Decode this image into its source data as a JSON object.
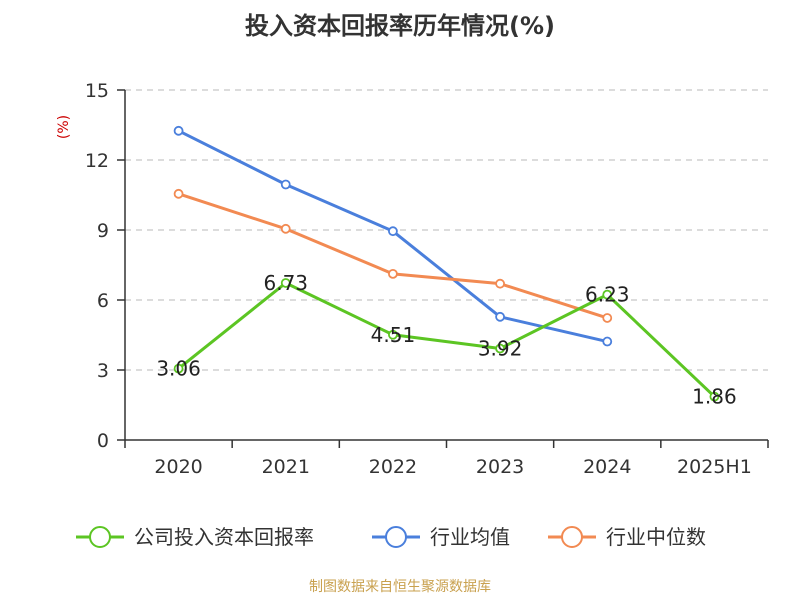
{
  "title": "投入资本回报率历年情况(%)",
  "footer": "制图数据来自恒生聚源数据库",
  "chart_data": {
    "type": "line",
    "categories": [
      "2020",
      "2021",
      "2022",
      "2023",
      "2024",
      "2025H1"
    ],
    "ylabel": "(%)",
    "ylim": [
      0,
      15
    ],
    "yticks": [
      0,
      3,
      6,
      9,
      12,
      15
    ],
    "grid": true,
    "legend_position": "bottom",
    "series": [
      {
        "name": "公司投入资本回报率",
        "color": "#5cc523",
        "values": [
          3.06,
          6.73,
          4.51,
          3.92,
          6.23,
          1.86
        ],
        "labels": [
          "3.06",
          "6.73",
          "4.51",
          "3.92",
          "6.23",
          "1.86"
        ]
      },
      {
        "name": "行业均值",
        "color": "#4a7fdc",
        "values": [
          13.25,
          10.95,
          8.95,
          5.28,
          4.22,
          null
        ]
      },
      {
        "name": "行业中位数",
        "color": "#f28a52",
        "values": [
          10.55,
          9.05,
          7.12,
          6.7,
          5.23,
          null
        ]
      }
    ]
  }
}
